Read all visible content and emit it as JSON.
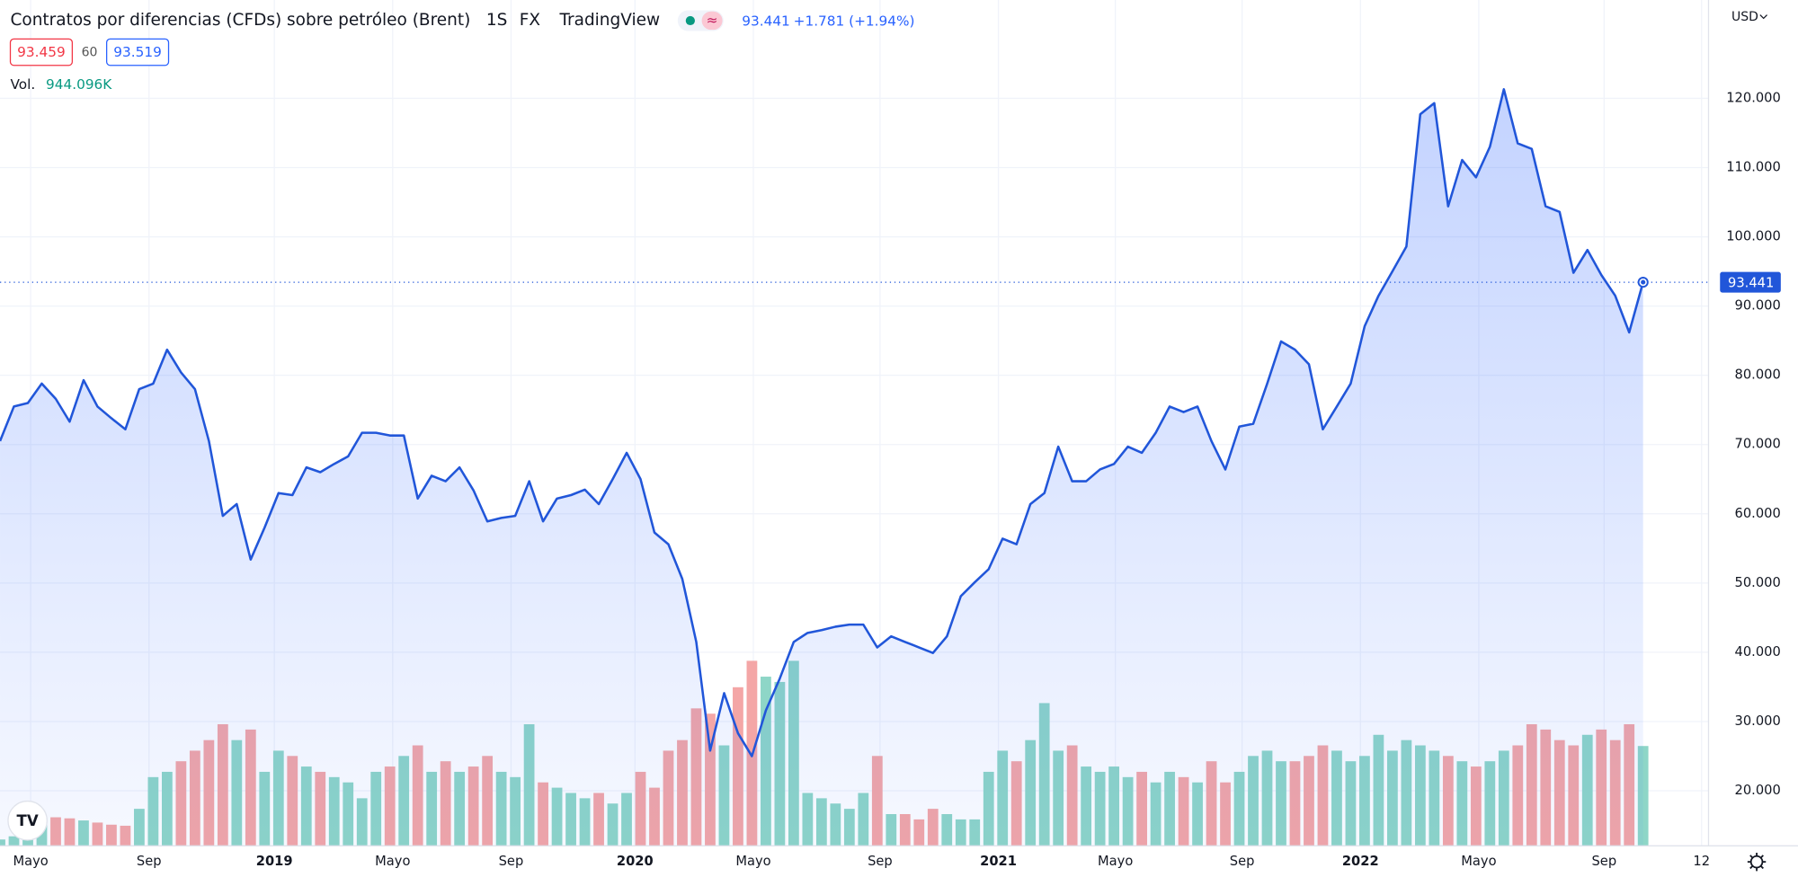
{
  "chart_data": {
    "type": "area",
    "title": "Contratos por diferencias (CFDs) sobre petróleo (Brent)",
    "interval": "1S",
    "exchange": "FX",
    "source": "TradingView",
    "change_text": "+1.781 (+1.94%)",
    "bid": 93.459,
    "spread": 60,
    "ask": 93.519,
    "currency": "USD",
    "volume_text": "944.096K",
    "grid": true,
    "xlim": [
      0,
      122.7
    ],
    "ylim": [
      12.05,
      134.2
    ],
    "vlim": [
      0,
      8000
    ],
    "xticks": [
      {
        "value": 2.2,
        "label": "Mayo"
      },
      {
        "value": 10.7,
        "label": "Sep"
      },
      {
        "value": 19.7,
        "label": "2019"
      },
      {
        "value": 28.2,
        "label": "Mayo"
      },
      {
        "value": 36.7,
        "label": "Sep"
      },
      {
        "value": 45.6,
        "label": "2020"
      },
      {
        "value": 54.1,
        "label": "Mayo"
      },
      {
        "value": 63.2,
        "label": "Sep"
      },
      {
        "value": 71.7,
        "label": "2021"
      },
      {
        "value": 80.1,
        "label": "Mayo"
      },
      {
        "value": 89.2,
        "label": "Sep"
      },
      {
        "value": 97.7,
        "label": "2022"
      },
      {
        "value": 106.2,
        "label": "Mayo"
      },
      {
        "value": 115.2,
        "label": "Sep"
      },
      {
        "value": 122.2,
        "label": "12"
      }
    ],
    "yticks": [
      {
        "value": 20,
        "label": "20.000"
      },
      {
        "value": 30,
        "label": "30.000"
      },
      {
        "value": 40,
        "label": "40.000"
      },
      {
        "value": 50,
        "label": "50.000"
      },
      {
        "value": 60,
        "label": "60.000"
      },
      {
        "value": 70,
        "label": "70.000"
      },
      {
        "value": 80,
        "label": "80.000"
      },
      {
        "value": 90,
        "label": "90.000"
      },
      {
        "value": 100,
        "label": "100.000"
      },
      {
        "value": 110,
        "label": "110.000"
      },
      {
        "value": 120,
        "label": "120.000"
      }
    ],
    "series": [
      {
        "color": "#2156d9",
        "values": [
          70.5,
          75.5,
          76,
          78.8,
          76.6,
          73.3,
          79.3,
          75.5,
          73.8,
          72.2,
          78,
          78.8,
          83.7,
          80.4,
          78,
          70.5,
          59.7,
          61.4,
          53.4,
          58,
          63,
          62.7,
          66.7,
          66,
          67.2,
          68.3,
          71.7,
          71.7,
          71.3,
          71.3,
          62.2,
          65.5,
          64.7,
          66.7,
          63.4,
          58.9,
          59.4,
          59.7,
          64.7,
          58.9,
          62.2,
          62.7,
          63.5,
          61.4,
          65,
          68.8,
          65,
          57.3,
          55.6,
          50.6,
          41.5,
          25.8,
          34.1,
          28.3,
          25,
          31.6,
          36.2,
          41.5,
          42.8,
          43.2,
          43.7,
          44,
          44,
          40.7,
          42.3,
          41.5,
          40.7,
          39.9,
          42.3,
          48.1,
          50.1,
          52,
          56.4,
          55.6,
          61.4,
          63,
          69.7,
          64.7,
          64.7,
          66.4,
          67.2,
          69.7,
          68.8,
          71.7,
          75.5,
          74.7,
          75.5,
          70.5,
          66.4,
          72.6,
          73,
          78.8,
          84.9,
          83.7,
          81.6,
          72.2,
          75.5,
          78.8,
          87.1,
          91.5,
          95,
          98.6,
          117.7,
          119.3,
          104.4,
          111.1,
          108.6,
          113,
          121.3,
          113.5,
          112.7,
          104.4,
          103.6,
          94.8,
          98.1,
          94.5,
          91.5,
          86.2,
          93.441
        ]
      },
      {
        "name": "Vol.",
        "axis": "volume",
        "up_color": "#8ed6c7",
        "down_color": "#f4a6a6",
        "values": [
          60,
          90,
          130,
          240,
          270,
          260,
          240,
          220,
          200,
          190,
          350,
          650,
          700,
          800,
          900,
          1000,
          1150,
          1000,
          1100,
          700,
          900,
          850,
          750,
          700,
          650,
          600,
          450,
          700,
          750,
          850,
          950,
          700,
          800,
          700,
          750,
          850,
          700,
          650,
          1150,
          600,
          550,
          500,
          450,
          500,
          400,
          500,
          700,
          550,
          900,
          1000,
          1300,
          1250,
          950,
          1500,
          1750,
          1600,
          1550,
          1750,
          500,
          450,
          400,
          350,
          500,
          850,
          300,
          300,
          250,
          350,
          300,
          250,
          250,
          700,
          900,
          800,
          1000,
          1350,
          900,
          950,
          750,
          700,
          750,
          650,
          700,
          600,
          700,
          650,
          600,
          800,
          600,
          700,
          850,
          900,
          800,
          800,
          850,
          950,
          900,
          800,
          850,
          1050,
          900,
          1000,
          950,
          900,
          850,
          800,
          750,
          800,
          900,
          950,
          1150,
          1100,
          1000,
          950,
          1050,
          1100,
          1000,
          1150,
          944.096
        ]
      }
    ]
  }
}
